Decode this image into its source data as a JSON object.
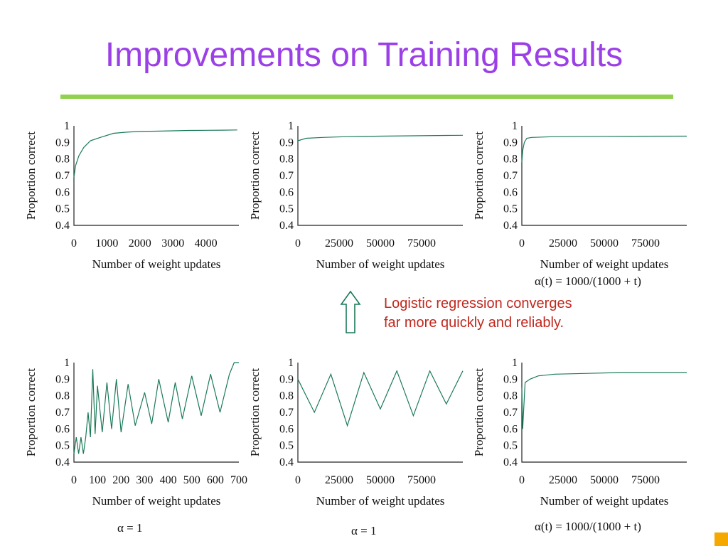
{
  "title": "Improvements on Training Results",
  "note": {
    "line1": "Logistic regression converges",
    "line2": "far more quickly and reliably."
  },
  "formulas": {
    "top_right": "α(t) = 1000/(1000 + t)",
    "bottom_left": "α = 1",
    "bottom_middle": "α = 1",
    "bottom_right": "α(t) = 1000/(1000 + t)"
  },
  "colors": {
    "title": "#9b3fe6",
    "rule": "#92d050",
    "series": "#1b7a57",
    "note": "#c0281e",
    "corner": "#f5a800"
  },
  "chart_data": [
    {
      "id": "top-left",
      "type": "line",
      "xlabel": "Number of weight updates",
      "ylabel": "Proportion correct",
      "xlim": [
        0,
        5000
      ],
      "ylim": [
        0.4,
        1
      ],
      "xticks": [
        0,
        1000,
        2000,
        3000,
        4000
      ],
      "yticks": [
        0.4,
        0.5,
        0.6,
        0.7,
        0.8,
        0.9,
        1
      ],
      "series": [
        {
          "x": [
            0,
            50,
            150,
            300,
            500,
            800,
            1200,
            1600,
            2000,
            2500,
            3000,
            3500,
            4000,
            4500,
            4950
          ],
          "values": [
            0.69,
            0.76,
            0.82,
            0.87,
            0.91,
            0.93,
            0.955,
            0.962,
            0.966,
            0.968,
            0.97,
            0.972,
            0.973,
            0.974,
            0.975
          ]
        }
      ]
    },
    {
      "id": "top-middle",
      "type": "line",
      "xlabel": "Number of weight updates",
      "ylabel": "Proportion correct",
      "xlim": [
        0,
        100000
      ],
      "ylim": [
        0.4,
        1
      ],
      "xticks": [
        0,
        25000,
        50000,
        75000
      ],
      "yticks": [
        0.4,
        0.5,
        0.6,
        0.7,
        0.8,
        0.9,
        1
      ],
      "series": [
        {
          "x": [
            0,
            5000,
            15000,
            30000,
            50000,
            70000,
            90000,
            100000
          ],
          "values": [
            0.91,
            0.925,
            0.93,
            0.935,
            0.938,
            0.94,
            0.942,
            0.943
          ]
        }
      ]
    },
    {
      "id": "top-right",
      "type": "line",
      "xlabel": "Number of weight updates",
      "ylabel": "Proportion correct",
      "xlim": [
        0,
        100000
      ],
      "ylim": [
        0.4,
        1
      ],
      "xticks": [
        0,
        25000,
        50000,
        75000
      ],
      "yticks": [
        0.4,
        0.5,
        0.6,
        0.7,
        0.8,
        0.9,
        1
      ],
      "series": [
        {
          "x": [
            0,
            500,
            1500,
            3000,
            6000,
            20000,
            50000,
            100000
          ],
          "values": [
            0.78,
            0.85,
            0.9,
            0.925,
            0.93,
            0.935,
            0.937,
            0.938
          ]
        }
      ]
    },
    {
      "id": "bottom-left",
      "type": "line",
      "xlabel": "Number of weight updates",
      "ylabel": "Proportion correct",
      "xlim": [
        0,
        700
      ],
      "ylim": [
        0.4,
        1
      ],
      "xticks": [
        0,
        100,
        200,
        300,
        400,
        500,
        600,
        700
      ],
      "yticks": [
        0.4,
        0.5,
        0.6,
        0.7,
        0.8,
        0.9,
        1
      ],
      "series": [
        {
          "x": [
            0,
            10,
            20,
            30,
            40,
            50,
            60,
            70,
            80,
            90,
            100,
            120,
            140,
            160,
            180,
            200,
            230,
            260,
            300,
            330,
            360,
            400,
            430,
            460,
            500,
            540,
            580,
            620,
            660,
            680,
            700
          ],
          "values": [
            0.45,
            0.55,
            0.45,
            0.55,
            0.45,
            0.55,
            0.7,
            0.55,
            0.96,
            0.57,
            0.86,
            0.58,
            0.88,
            0.6,
            0.9,
            0.58,
            0.87,
            0.62,
            0.82,
            0.63,
            0.9,
            0.64,
            0.88,
            0.66,
            0.92,
            0.68,
            0.93,
            0.7,
            0.93,
            1.0,
            1.0
          ]
        }
      ]
    },
    {
      "id": "bottom-middle",
      "type": "line",
      "xlabel": "Number of weight updates",
      "ylabel": "Proportion correct",
      "xlim": [
        0,
        100000
      ],
      "ylim": [
        0.4,
        1
      ],
      "xticks": [
        0,
        25000,
        50000,
        75000
      ],
      "yticks": [
        0.4,
        0.5,
        0.6,
        0.7,
        0.8,
        0.9,
        1
      ],
      "series": [
        {
          "x": [
            0,
            10000,
            20000,
            30000,
            40000,
            50000,
            60000,
            70000,
            80000,
            90000,
            100000
          ],
          "values": [
            0.9,
            0.7,
            0.93,
            0.62,
            0.94,
            0.72,
            0.95,
            0.68,
            0.95,
            0.75,
            0.95
          ]
        }
      ]
    },
    {
      "id": "bottom-right",
      "type": "line",
      "xlabel": "Number of weight updates",
      "ylabel": "Proportion correct",
      "xlim": [
        0,
        100000
      ],
      "ylim": [
        0.4,
        1
      ],
      "xticks": [
        0,
        25000,
        50000,
        75000
      ],
      "yticks": [
        0.4,
        0.5,
        0.6,
        0.7,
        0.8,
        0.9,
        1
      ],
      "series": [
        {
          "x": [
            0,
            500,
            2000,
            5000,
            10000,
            20000,
            40000,
            60000,
            80000,
            100000
          ],
          "values": [
            0.85,
            0.6,
            0.88,
            0.9,
            0.92,
            0.93,
            0.935,
            0.94,
            0.94,
            0.94
          ]
        }
      ]
    }
  ]
}
